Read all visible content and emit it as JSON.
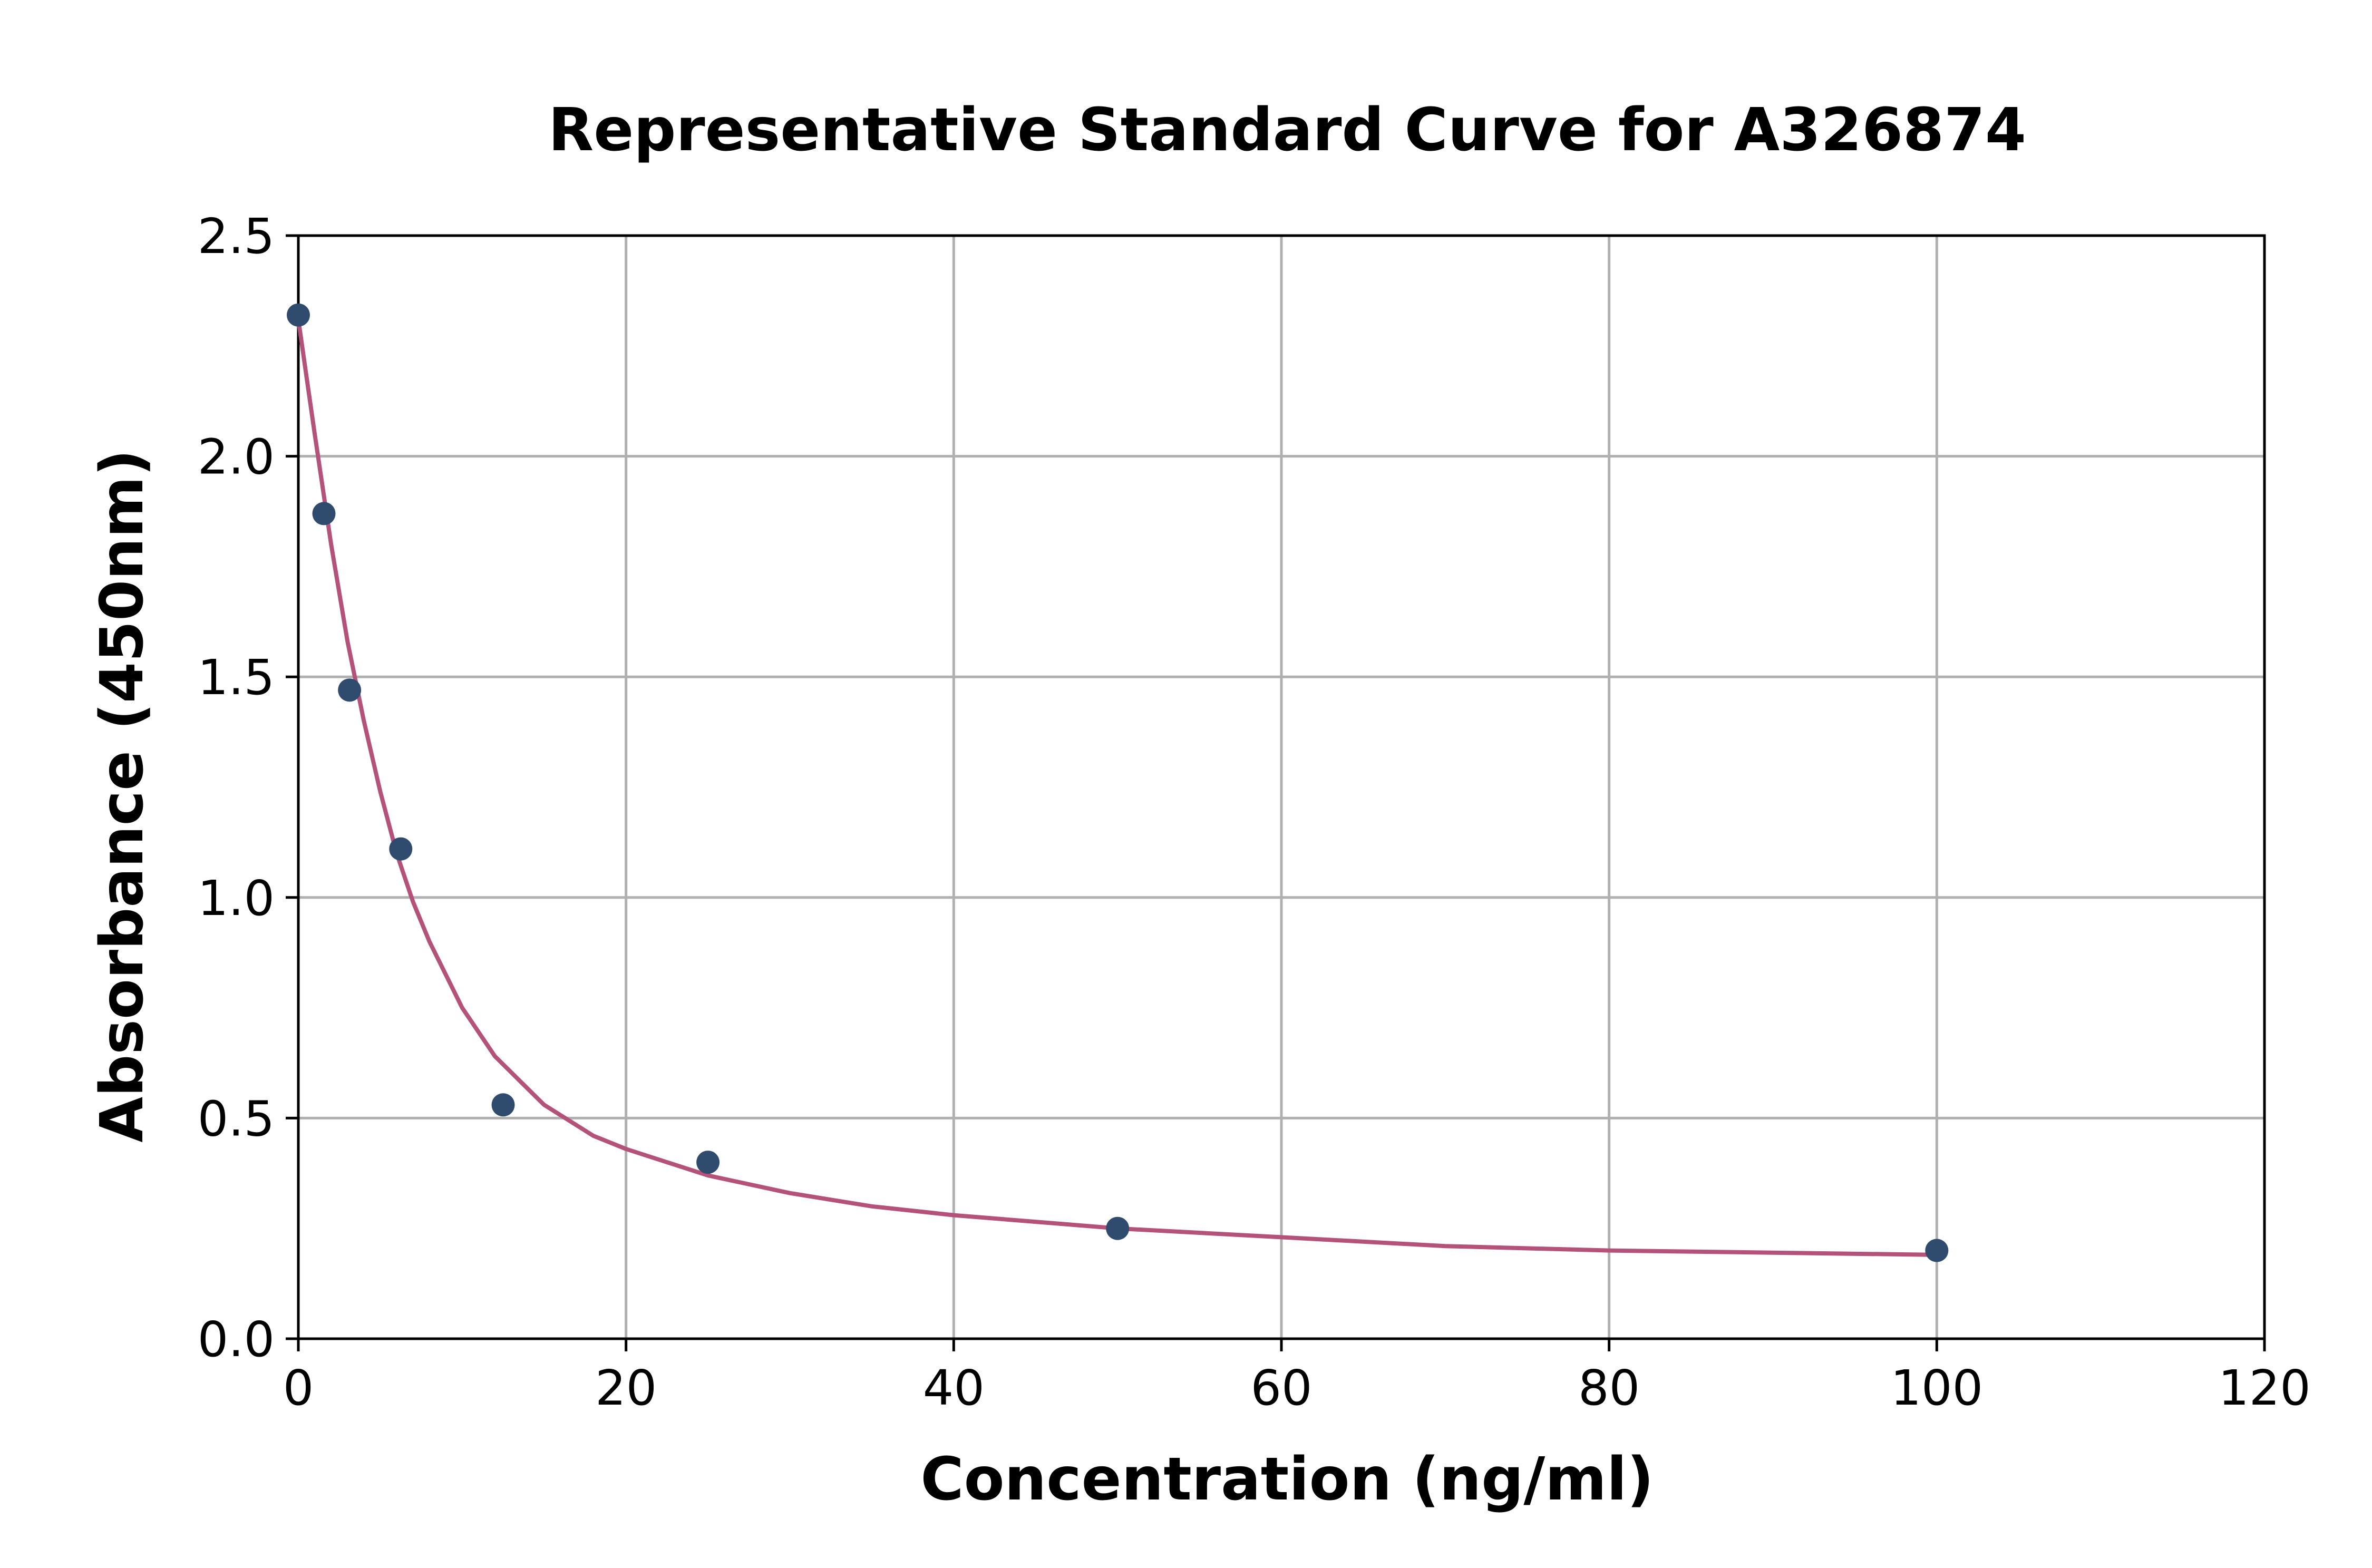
{
  "chart_data": {
    "type": "scatter",
    "title": "Representative Standard Curve for A326874",
    "xlabel": "Concentration (ng/ml)",
    "ylabel": "Absorbance (450nm)",
    "xlim": [
      0,
      120
    ],
    "ylim": [
      0,
      2.5
    ],
    "x_ticks": [
      "0",
      "20",
      "40",
      "60",
      "80",
      "100",
      "120"
    ],
    "y_ticks": [
      "0.0",
      "0.5",
      "1.0",
      "1.5",
      "2.0",
      "2.5"
    ],
    "grid": true,
    "legend": "none",
    "series": [
      {
        "kind": "points",
        "color": "#2f4b6e",
        "x": [
          0,
          1.56,
          3.125,
          6.25,
          12.5,
          25,
          50,
          100
        ],
        "y": [
          2.32,
          1.87,
          1.47,
          1.11,
          0.53,
          0.4,
          0.25,
          0.2
        ]
      },
      {
        "kind": "fitted-curve",
        "color": "#b5527a",
        "x": [
          0,
          0.5,
          1,
          2,
          3,
          4,
          5,
          6,
          7,
          8,
          10,
          12,
          15,
          18,
          20,
          25,
          30,
          35,
          40,
          50,
          60,
          70,
          80,
          90,
          100
        ],
        "y": [
          2.31,
          2.18,
          2.05,
          1.8,
          1.58,
          1.4,
          1.24,
          1.1,
          0.99,
          0.9,
          0.75,
          0.64,
          0.53,
          0.46,
          0.43,
          0.37,
          0.33,
          0.3,
          0.28,
          0.25,
          0.23,
          0.21,
          0.2,
          0.195,
          0.19
        ]
      }
    ]
  }
}
